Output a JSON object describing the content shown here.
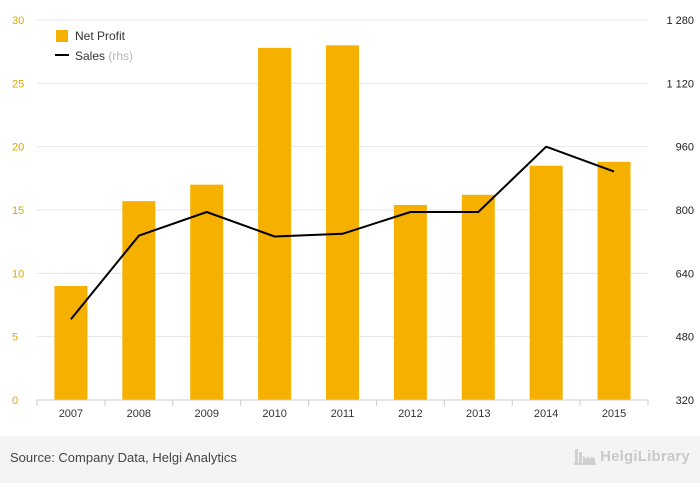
{
  "chart_data": {
    "type": "bar+line",
    "categories": [
      "2007",
      "2008",
      "2009",
      "2010",
      "2011",
      "2012",
      "2013",
      "2014",
      "2015"
    ],
    "series": [
      {
        "name": "Net Profit",
        "kind": "bar",
        "axis": "left",
        "color": "#f5b000",
        "values": [
          9.0,
          15.7,
          17.0,
          27.8,
          28.0,
          15.4,
          16.2,
          18.5,
          18.8
        ]
      },
      {
        "name": "Sales",
        "kind": "line",
        "axis": "right",
        "color": "#000000",
        "values": [
          524,
          735,
          795,
          733,
          740,
          795,
          795,
          960,
          897
        ]
      }
    ],
    "y_left": {
      "lim": [
        0,
        30
      ],
      "ticks": [
        "0",
        "5",
        "10",
        "15",
        "20",
        "25",
        "30"
      ]
    },
    "y_right": {
      "lim": [
        320,
        1280
      ],
      "ticks": [
        "320",
        "480",
        "640",
        "800",
        "960",
        "1 120",
        "1 280"
      ]
    },
    "legend": {
      "position": "top-left",
      "items": [
        {
          "label": "Net Profit",
          "suffix": ""
        },
        {
          "label": "Sales",
          "suffix": "(rhs)"
        }
      ]
    },
    "grid": true
  },
  "footer": {
    "source": "Source: Company Data, Helgi Analytics",
    "brand": "HelgiLibrary",
    "brand_icon": "factory-icon"
  }
}
